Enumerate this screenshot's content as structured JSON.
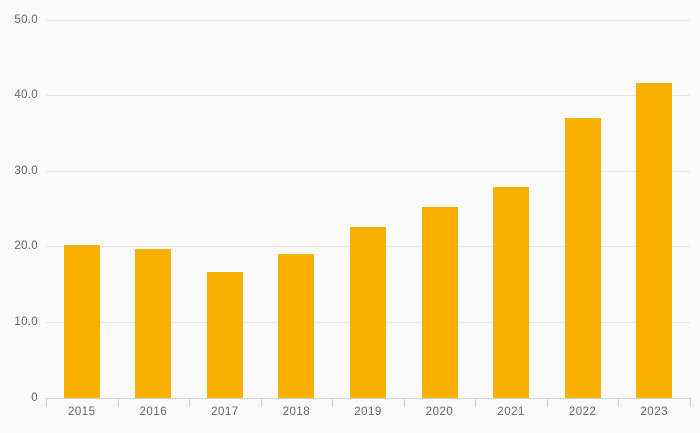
{
  "chart_data": {
    "type": "bar",
    "title": "",
    "xlabel": "",
    "ylabel": "",
    "categories": [
      "2015",
      "2016",
      "2017",
      "2018",
      "2019",
      "2020",
      "2021",
      "2022",
      "2023"
    ],
    "values": [
      20.3,
      19.7,
      16.7,
      19.0,
      22.6,
      25.3,
      27.9,
      37.0,
      41.7
    ],
    "ylim": [
      0,
      50
    ],
    "ytick_interval": 10,
    "yticks": [
      {
        "value": 0,
        "label": "0"
      },
      {
        "value": 10,
        "label": "10.0"
      },
      {
        "value": 20,
        "label": "20.0"
      },
      {
        "value": 30,
        "label": "30.0"
      },
      {
        "value": 40,
        "label": "40.0"
      },
      {
        "value": 50,
        "label": "50.0"
      }
    ],
    "grid": "horizontal",
    "legend_position": "none",
    "colors": {
      "bar": "#F9B000",
      "background": "#fafafa",
      "gridline": "#e8e8e8",
      "axis_line": "#ccd3e3",
      "label_text": "#666666"
    }
  }
}
